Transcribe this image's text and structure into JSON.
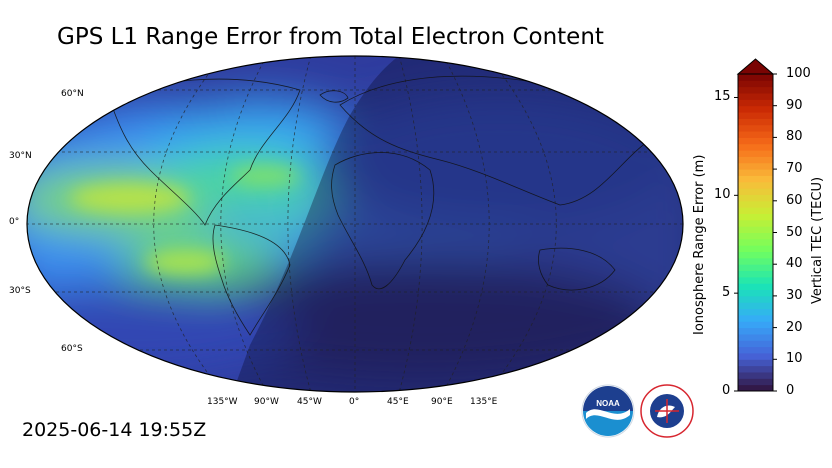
{
  "title": "GPS L1 Range Error from Total Electron Content",
  "timestamp": "2025-06-14 19:55Z",
  "map": {
    "projection": "robinson",
    "lat_labels": [
      "60°N",
      "30°N",
      "0°",
      "30°S",
      "60°S"
    ],
    "lon_labels": [
      "135°W",
      "90°W",
      "45°W",
      "0°",
      "45°E",
      "90°E",
      "135°E"
    ]
  },
  "colorbar": {
    "left_axis_label": "Ionosphere Range Error (m)",
    "right_axis_label": "Vertical TEC (TECU)",
    "left_ticks": [
      "0",
      "5",
      "10",
      "15"
    ],
    "right_ticks": [
      "0",
      "10",
      "20",
      "30",
      "40",
      "50",
      "60",
      "70",
      "80",
      "90",
      "100"
    ],
    "range_tecu": [
      0,
      100
    ],
    "range_m": [
      0,
      16.2
    ],
    "extend": "max",
    "colormap_stops": [
      "#30123b",
      "#4662d7",
      "#36aaf9",
      "#1ae4b6",
      "#72fe5e",
      "#c7ef34",
      "#fabb3a",
      "#f66b19",
      "#cb2a04",
      "#7a0403"
    ]
  },
  "logos": {
    "noaa": {
      "text": "NOAA",
      "color": "#1f5fae"
    },
    "nws": {
      "text": "NATIONAL WEATHER SERVICE",
      "color": "#d7262f"
    }
  }
}
